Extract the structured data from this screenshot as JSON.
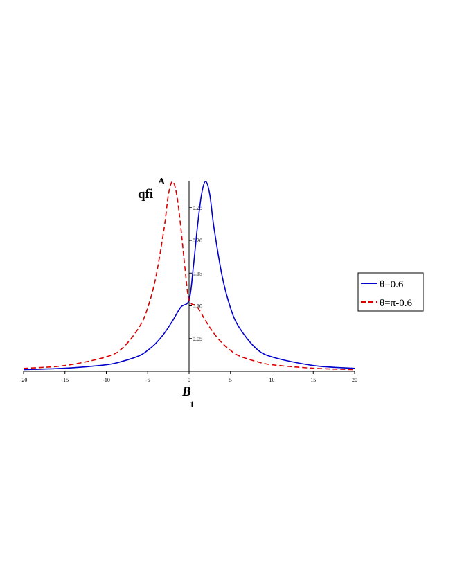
{
  "chart_data": {
    "type": "line",
    "title": "",
    "xlabel": {
      "main": "B",
      "sub": "1"
    },
    "ylabel": {
      "main": "qfi",
      "sup": "A"
    },
    "xlim": [
      -20,
      20
    ],
    "ylim": [
      0,
      0.29
    ],
    "x_ticks": [
      -20,
      -15,
      -10,
      -5,
      0,
      5,
      10,
      15,
      20
    ],
    "x_tick_labels": [
      "-20",
      "-15",
      "-10",
      "-5",
      "0",
      "5",
      "10",
      "15",
      "20"
    ],
    "y_ticks": [
      0.05,
      0.1,
      0.15,
      0.2,
      0.25
    ],
    "y_tick_labels": [
      "0.05",
      "0.10",
      "0.15",
      "0.20",
      "0.25"
    ],
    "grid": false,
    "legend_position": "right",
    "series": [
      {
        "name": "θ=0.6",
        "color": "#0000cc",
        "style": "solid",
        "x": [
          -20,
          -15,
          -10,
          -8,
          -6,
          -5,
          -4,
          -3,
          -2,
          -1,
          0,
          0.5,
          1,
          1.5,
          2,
          2.5,
          3,
          4,
          5,
          6,
          8,
          10,
          15,
          20
        ],
        "y": [
          0.0026,
          0.0047,
          0.01,
          0.0154,
          0.0238,
          0.032,
          0.043,
          0.058,
          0.077,
          0.098,
          0.109,
          0.158,
          0.22,
          0.27,
          0.29,
          0.27,
          0.22,
          0.145,
          0.097,
          0.068,
          0.036,
          0.022,
          0.0088,
          0.0045
        ]
      },
      {
        "name": "θ=π-0.6",
        "color": "#dd0000",
        "style": "dashed",
        "x": [
          -20,
          -15,
          -10,
          -8,
          -6,
          -5,
          -4,
          -3,
          -2.5,
          -2,
          -1.5,
          -1,
          -0.5,
          0,
          1,
          2,
          3,
          4,
          5,
          6,
          8,
          10,
          15,
          20
        ],
        "y": [
          0.0045,
          0.0088,
          0.022,
          0.036,
          0.068,
          0.097,
          0.145,
          0.22,
          0.27,
          0.29,
          0.27,
          0.22,
          0.158,
          0.109,
          0.098,
          0.077,
          0.058,
          0.043,
          0.032,
          0.0238,
          0.0154,
          0.01,
          0.0047,
          0.0026
        ]
      }
    ]
  }
}
